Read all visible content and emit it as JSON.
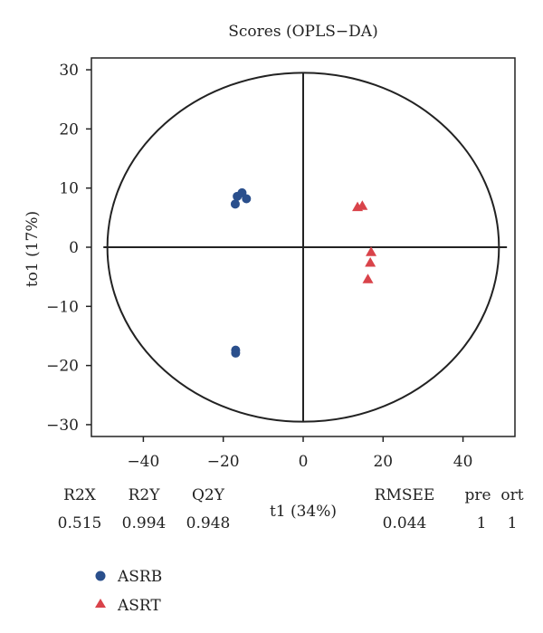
{
  "chart_data": {
    "type": "scatter",
    "title": "Scores (OPLS−DA)",
    "xlabel": "t1 (34%)",
    "ylabel": "to1 (17%)",
    "xlim": [
      -53,
      53
    ],
    "ylim": [
      -32,
      32
    ],
    "xticks": [
      -40,
      -20,
      0,
      20,
      40
    ],
    "xtick_labels": [
      "−40",
      "−20",
      "0",
      "20",
      "40"
    ],
    "yticks": [
      30,
      20,
      10,
      0,
      -10,
      -20,
      -30
    ],
    "ytick_labels": [
      "30",
      "20",
      "10",
      "0",
      "−10",
      "−20",
      "−30"
    ],
    "grid": false,
    "zero_lines": true,
    "confidence_ellipse": {
      "center": [
        0,
        0
      ],
      "rx": 49,
      "ry": 29.5
    },
    "legend": {
      "position": "bottom-left"
    },
    "series": [
      {
        "name": "ASRB",
        "marker": "circle",
        "color": "#2a4f8c",
        "points": [
          {
            "x": -16.5,
            "y": 8.6
          },
          {
            "x": -15.3,
            "y": 9.2
          },
          {
            "x": -14.2,
            "y": 8.2
          },
          {
            "x": -17.0,
            "y": 7.3
          },
          {
            "x": -16.9,
            "y": -17.4
          },
          {
            "x": -16.9,
            "y": -17.9
          }
        ]
      },
      {
        "name": "ASRT",
        "marker": "triangle",
        "color": "#d9434a",
        "points": [
          {
            "x": 13.6,
            "y": 6.8
          },
          {
            "x": 14.8,
            "y": 7.0
          },
          {
            "x": 17.0,
            "y": -0.8
          },
          {
            "x": 16.8,
            "y": -2.6
          },
          {
            "x": 16.2,
            "y": -5.4
          }
        ]
      }
    ],
    "stats": {
      "headers": [
        "R2X",
        "R2Y",
        "Q2Y",
        "RMSEE",
        "pre",
        "ort"
      ],
      "values": [
        "0.515",
        "0.994",
        "0.948",
        "0.044",
        "1",
        "1"
      ]
    }
  }
}
